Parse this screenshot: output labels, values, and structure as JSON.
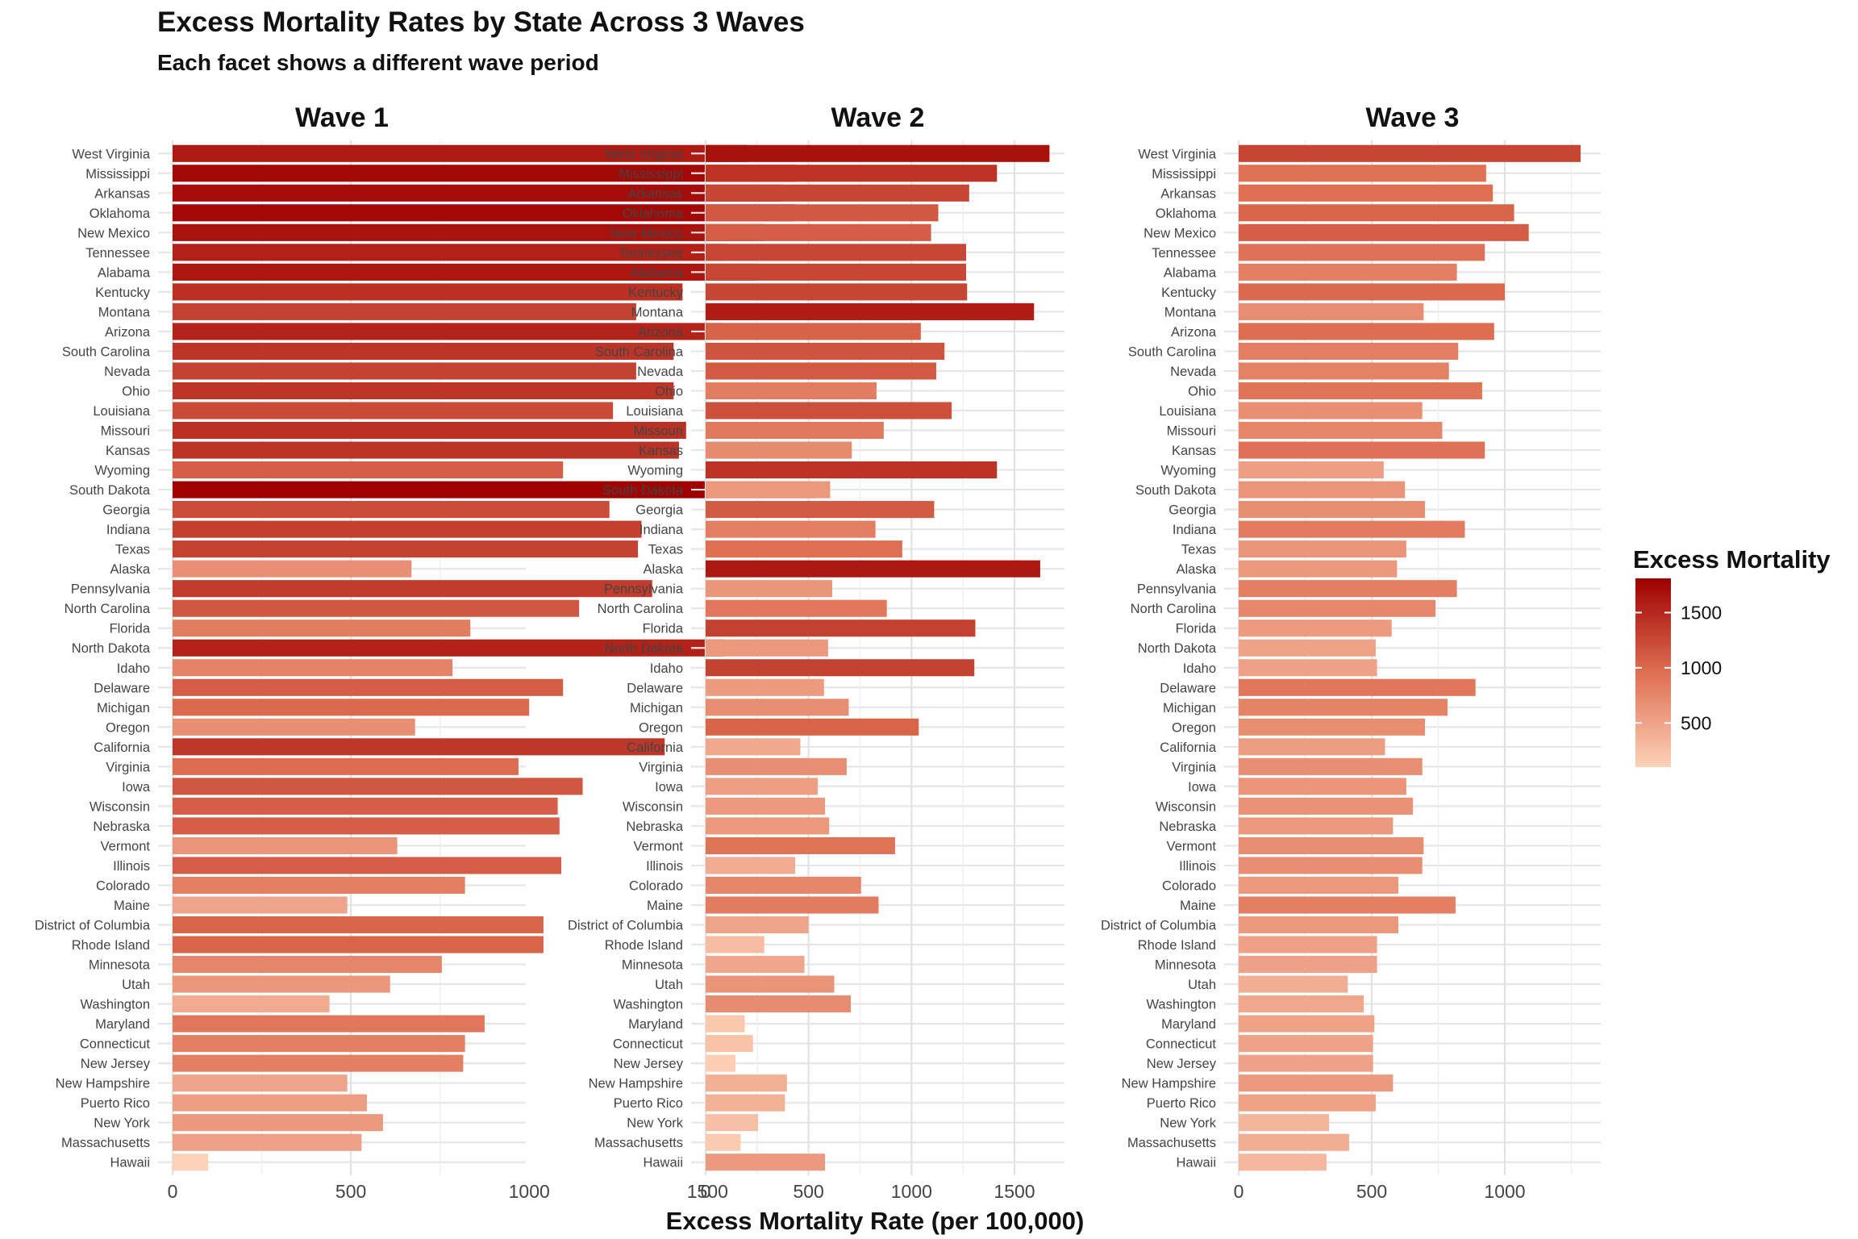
{
  "chart_data": {
    "type": "bar",
    "orientation": "horizontal",
    "title": "Excess Mortality Rates by State Across 3 Waves",
    "subtitle": "Each facet shows a different wave period",
    "xlabel": "Excess Mortality Rate (per 100,000)",
    "legend": {
      "title": "Excess Mortality",
      "placement": "right",
      "ticks": [
        500,
        1000,
        1500
      ],
      "range": [
        100,
        1810
      ],
      "low_color": "#fdd2b8",
      "high_color": "#9e0000"
    },
    "grid": true,
    "categories": [
      "West Virginia",
      "Mississippi",
      "Arkansas",
      "Oklahoma",
      "New Mexico",
      "Tennessee",
      "Alabama",
      "Kentucky",
      "Montana",
      "Arizona",
      "South Carolina",
      "Nevada",
      "Ohio",
      "Louisiana",
      "Missouri",
      "Kansas",
      "Wyoming",
      "South Dakota",
      "Georgia",
      "Indiana",
      "Texas",
      "Alaska",
      "Pennsylvania",
      "North Carolina",
      "Florida",
      "North Dakota",
      "Idaho",
      "Delaware",
      "Michigan",
      "Oregon",
      "California",
      "Virginia",
      "Iowa",
      "Wisconsin",
      "Nebraska",
      "Vermont",
      "Illinois",
      "Colorado",
      "Maine",
      "District of Columbia",
      "Rhode Island",
      "Minnesota",
      "Utah",
      "Washington",
      "Maryland",
      "Connecticut",
      "New Jersey",
      "New Hampshire",
      "Puerto Rico",
      "New York",
      "Massachusetts",
      "Hawaii"
    ],
    "facets": [
      {
        "name": "Wave 1",
        "xlim": [
          0,
          1810
        ],
        "xticks": [
          0,
          500,
          1000,
          1500
        ],
        "values": [
          1610,
          1750,
          1710,
          1745,
          1660,
          1555,
          1640,
          1430,
          1300,
          1540,
          1405,
          1300,
          1405,
          1235,
          1440,
          1420,
          1095,
          1805,
          1225,
          1315,
          1305,
          670,
          1345,
          1140,
          835,
          1545,
          785,
          1095,
          1000,
          680,
          1380,
          970,
          1150,
          1080,
          1085,
          630,
          1090,
          820,
          490,
          1040,
          1040,
          755,
          610,
          440,
          875,
          820,
          815,
          490,
          545,
          590,
          530,
          100
        ]
      },
      {
        "name": "Wave 2",
        "xlim": [
          0,
          1740
        ],
        "xticks": [
          0,
          500,
          1000,
          1500
        ],
        "values": [
          1670,
          1415,
          1280,
          1130,
          1095,
          1265,
          1265,
          1270,
          1595,
          1045,
          1160,
          1120,
          830,
          1195,
          865,
          710,
          1415,
          605,
          1110,
          825,
          955,
          1625,
          615,
          880,
          1310,
          595,
          1305,
          575,
          695,
          1035,
          460,
          685,
          545,
          580,
          600,
          920,
          435,
          755,
          840,
          500,
          285,
          480,
          625,
          705,
          190,
          230,
          145,
          395,
          385,
          255,
          170,
          580
        ]
      },
      {
        "name": "Wave 3",
        "xlim": [
          0,
          1340
        ],
        "xticks": [
          0,
          500,
          1000
        ],
        "values": [
          1285,
          930,
          955,
          1035,
          1090,
          925,
          820,
          1000,
          695,
          960,
          825,
          790,
          915,
          690,
          765,
          925,
          545,
          625,
          700,
          850,
          630,
          595,
          820,
          740,
          575,
          515,
          520,
          890,
          785,
          700,
          550,
          690,
          630,
          655,
          580,
          695,
          690,
          600,
          815,
          600,
          520,
          520,
          410,
          470,
          510,
          505,
          505,
          580,
          515,
          340,
          415,
          330
        ]
      }
    ]
  }
}
